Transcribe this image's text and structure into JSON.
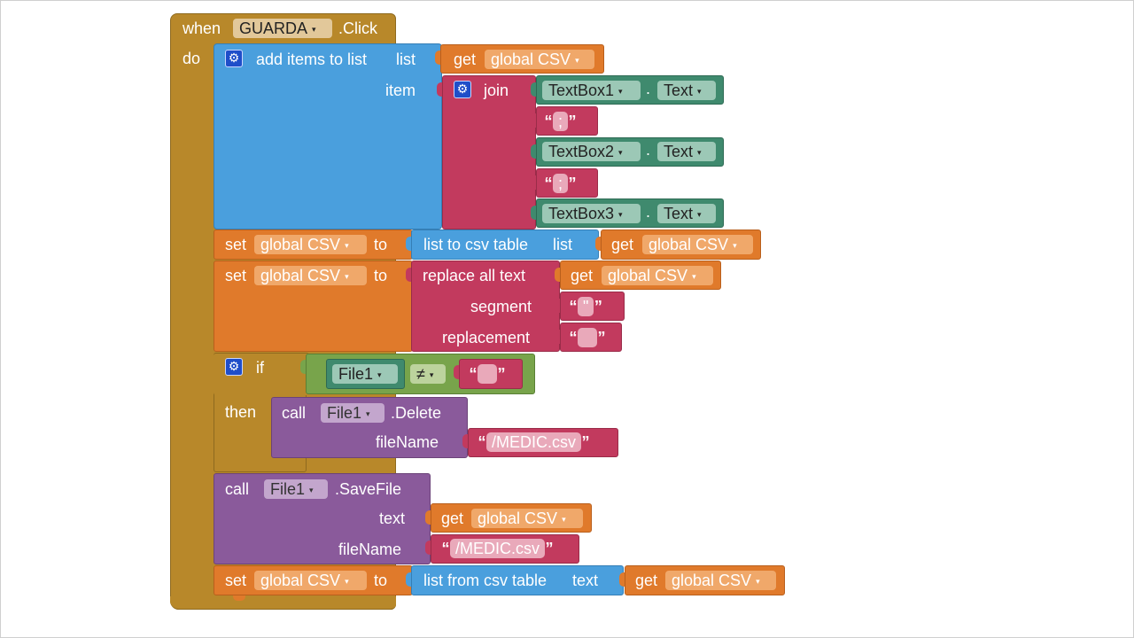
{
  "colors": {
    "event": "#b8882a",
    "list": "#4a9fdd",
    "text": "#c23a5e",
    "component": "#3f8a6e",
    "variable": "#e07a2b",
    "logic": "#78a44b",
    "method": "#8a5a9b",
    "control": "#b8882a"
  },
  "event": {
    "when": "when",
    "component": "GUARDA",
    "event": ".Click",
    "do": "do"
  },
  "add_items": {
    "title": "add items to list",
    "list_label": "list",
    "item_label": "item",
    "get": "get",
    "var": "global CSV"
  },
  "join": {
    "label": "join",
    "tb1": "TextBox1",
    "tb2": "TextBox2",
    "tb3": "TextBox3",
    "dot": ".",
    "prop": "Text",
    "semi": ";",
    "q_open": "“",
    "q_close": "”"
  },
  "set1": {
    "set": "set",
    "var": "global CSV",
    "to": "to",
    "fn": "list to csv table",
    "arg": "list",
    "get": "get",
    "getvar": "global CSV"
  },
  "set2": {
    "set": "set",
    "var": "global CSV",
    "to": "to",
    "fn": "replace all text",
    "get": "get",
    "getvar": "global CSV",
    "segment": "segment",
    "replacement": "replacement",
    "seg_value": "\""
  },
  "if_block": {
    "if": "if",
    "then": "then",
    "component": "File1",
    "op": "≠"
  },
  "delete_call": {
    "call": "call",
    "component": "File1",
    "method": ".Delete",
    "filename_label": "fileName",
    "filename": "/MEDIC.csv"
  },
  "save_call": {
    "call": "call",
    "component": "File1",
    "method": ".SaveFile",
    "text_label": "text",
    "get": "get",
    "getvar": "global CSV",
    "filename_label": "fileName",
    "filename": "/MEDIC.csv"
  },
  "set3": {
    "set": "set",
    "var": "global CSV",
    "to": "to",
    "fn": "list from csv table",
    "arg": "text",
    "get": "get",
    "getvar": "global CSV"
  }
}
